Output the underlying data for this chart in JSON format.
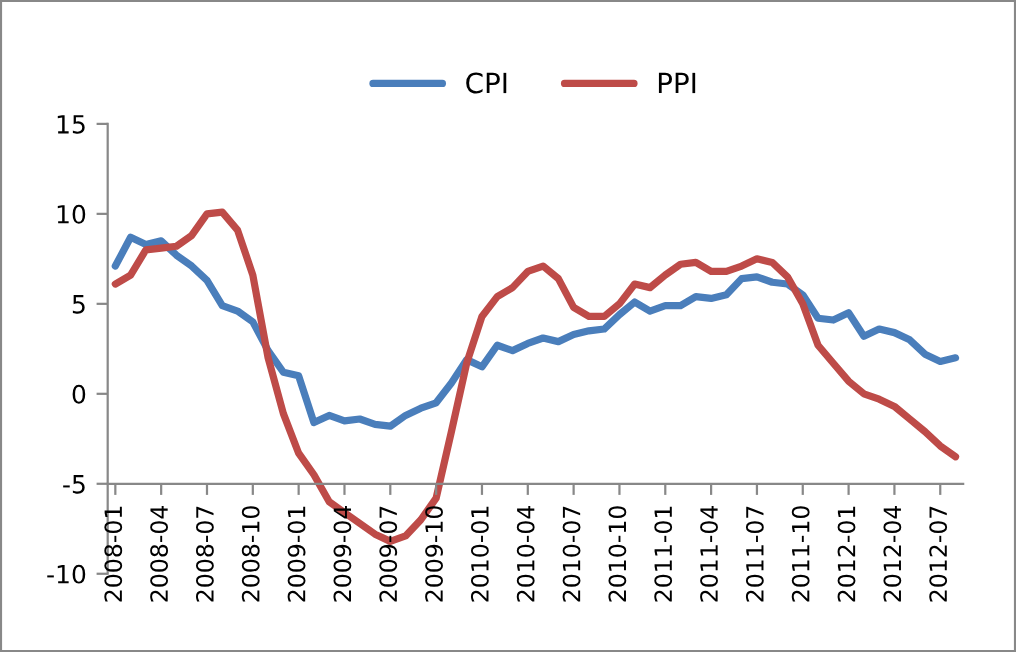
{
  "chart_data": {
    "type": "line",
    "categories": [
      "2008-01",
      null,
      null,
      "2008-04",
      null,
      null,
      "2008-07",
      null,
      null,
      "2008-10",
      null,
      null,
      "2009-01",
      null,
      null,
      "2009-04",
      null,
      null,
      "2009-07",
      null,
      null,
      "2009-10",
      null,
      null,
      "2010-01",
      null,
      null,
      "2010-04",
      null,
      null,
      "2010-07",
      null,
      null,
      "2010-10",
      null,
      null,
      "2011-01",
      null,
      null,
      "2011-04",
      null,
      null,
      "2011-07",
      null,
      null,
      "2011-10",
      null,
      null,
      "2012-01",
      null,
      null,
      "2012-04",
      null,
      null,
      "2012-07",
      null
    ],
    "series": [
      {
        "name": "CPI",
        "color": "#4a7ebb",
        "values": [
          7.1,
          8.7,
          8.3,
          8.5,
          7.7,
          7.1,
          6.3,
          4.9,
          4.6,
          4.0,
          2.4,
          1.2,
          1.0,
          -1.6,
          -1.2,
          -1.5,
          -1.4,
          -1.7,
          -1.8,
          -1.2,
          -0.8,
          -0.5,
          0.6,
          1.9,
          1.5,
          2.7,
          2.4,
          2.8,
          3.1,
          2.9,
          3.3,
          3.5,
          3.6,
          4.4,
          5.1,
          4.6,
          4.9,
          4.9,
          5.4,
          5.3,
          5.5,
          6.4,
          6.5,
          6.2,
          6.1,
          5.5,
          4.2,
          4.1,
          4.5,
          3.2,
          3.6,
          3.4,
          3.0,
          2.2,
          1.8,
          2.0
        ]
      },
      {
        "name": "PPI",
        "color": "#be4b48",
        "values": [
          6.1,
          6.6,
          8.0,
          8.1,
          8.2,
          8.8,
          10.0,
          10.1,
          9.1,
          6.6,
          2.0,
          -1.1,
          -3.3,
          -4.5,
          -6.0,
          -6.6,
          -7.2,
          -7.8,
          -8.2,
          -7.9,
          -7.0,
          -5.8,
          -2.1,
          1.7,
          4.3,
          5.4,
          5.9,
          6.8,
          7.1,
          6.4,
          4.8,
          4.3,
          4.3,
          5.0,
          6.1,
          5.9,
          6.6,
          7.2,
          7.3,
          6.8,
          6.8,
          7.1,
          7.5,
          7.3,
          6.5,
          5.0,
          2.7,
          1.7,
          0.7,
          0.0,
          -0.3,
          -0.7,
          -1.4,
          -2.1,
          -2.9,
          -3.5
        ]
      }
    ],
    "ylim": [
      -10,
      15
    ],
    "yticks": [
      -10,
      -5,
      0,
      5,
      10,
      15
    ],
    "grid": false,
    "legend": "top",
    "marker": "none",
    "line_style": "solid"
  }
}
